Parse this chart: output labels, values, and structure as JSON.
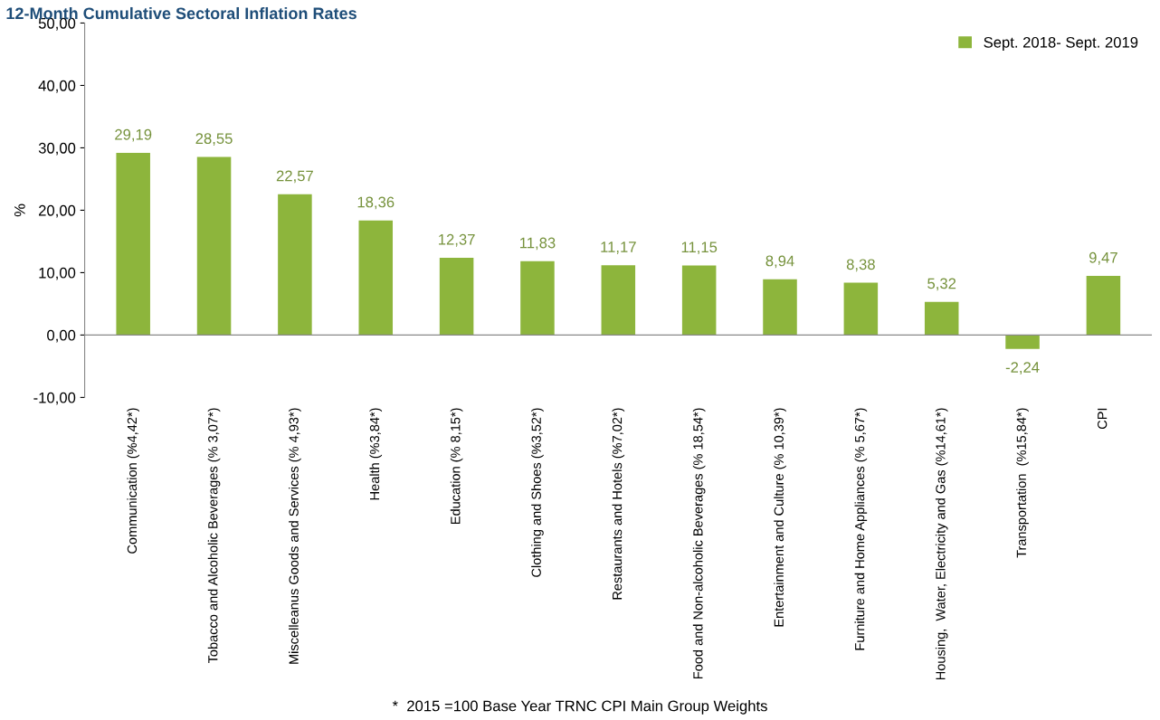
{
  "chart_data": {
    "type": "bar",
    "title": "12-Month Cumulative Sectoral Inflation Rates",
    "ylabel": "%",
    "categories": [
      "Communication (%4,42*)",
      "Tobacco and Alcoholic Beverages (% 3,07*)",
      "Miscelleanus Goods and Services (% 4,93*)",
      "Health (%3,84*)",
      "Education (% 8,15*)",
      "Clothing and Shoes (%3,52*)",
      "Restaurants and Hotels (%7,02*)",
      "Food and Non-alcoholic Beverages (% 18,54*)",
      "Entertainment and Culture (% 10,39*)",
      "Furniture and Home Appliances (% 5,67*)",
      "Housing,  Water, Electricity and Gas (%14,61*)",
      "Transportation  (%15,84*)",
      "CPI"
    ],
    "series": [
      {
        "name": "Sept. 2018- Sept. 2019",
        "color": "#8db53c",
        "values": [
          29.19,
          28.55,
          22.57,
          18.36,
          12.37,
          11.83,
          11.17,
          11.15,
          8.94,
          8.38,
          5.32,
          -2.24,
          9.47
        ],
        "value_labels": [
          "29,19",
          "28,55",
          "22,57",
          "18,36",
          "12,37",
          "11,83",
          "11,17",
          "11,15",
          "8,94",
          "8,38",
          "5,32",
          "-2,24",
          "9,47"
        ]
      }
    ],
    "ylim": [
      -10,
      50
    ],
    "yticks": [
      {
        "value": -10,
        "label": "-10,00"
      },
      {
        "value": 0,
        "label": "0,00"
      },
      {
        "value": 10,
        "label": "10,00"
      },
      {
        "value": 20,
        "label": "20,00"
      },
      {
        "value": 30,
        "label": "30,00"
      },
      {
        "value": 40,
        "label": "40,00"
      },
      {
        "value": 50,
        "label": "50,00"
      }
    ],
    "ref_lines": [
      {
        "axis": "y",
        "value": 0,
        "color": "#888888"
      }
    ],
    "grid": false,
    "legend": "top right",
    "annotations": [
      "*  2015 =100 Base Year TRNC CPI Main Group Weights"
    ]
  }
}
